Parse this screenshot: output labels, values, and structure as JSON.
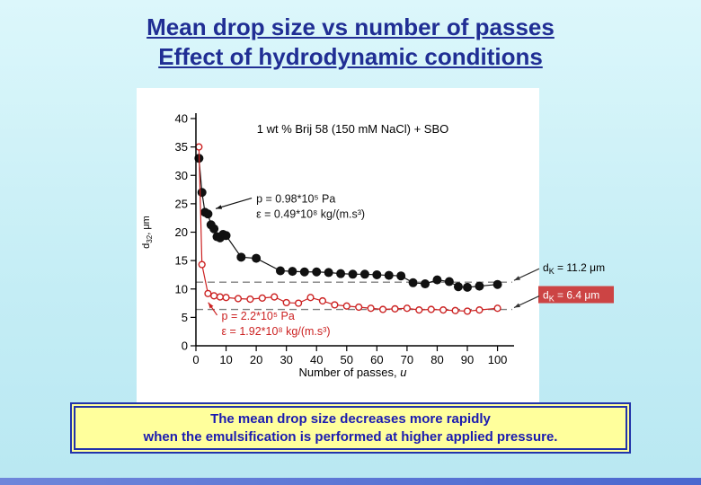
{
  "slide": {
    "title_line1": "Mean drop size vs number of passes",
    "title_line2": "Effect of hydrodynamic conditions",
    "caption_line1": "The mean drop size decreases more rapidly",
    "caption_line2": "when the emulsification is performed at higher applied pressure.",
    "colors": {
      "title_text": "#202e94",
      "caption_bg": "#ffff9c",
      "caption_border": "#2233aa",
      "caption_text": "#1b1bb0",
      "background": "#c4edf5",
      "bottom_bar": "#4a67cf"
    }
  },
  "chart_data": {
    "type": "scatter",
    "title": "1 wt % Brij 58 (150 mM NaCl) + SBO",
    "xlabel": {
      "text": "Number of passes, ",
      "var": "u"
    },
    "ylabel": {
      "base": "d",
      "sub": "32",
      "rest": ", μm"
    },
    "xlim": [
      0,
      104
    ],
    "ylim": [
      0,
      40
    ],
    "xticks": [
      0,
      10,
      20,
      30,
      40,
      50,
      60,
      70,
      80,
      90,
      100
    ],
    "yticks": [
      0,
      5,
      10,
      15,
      20,
      25,
      30,
      35,
      40
    ],
    "grid": false,
    "legend": "none",
    "series": [
      {
        "name": "low pressure run (filled black circles)",
        "color": "#111111",
        "marker": "filled",
        "points": [
          [
            1,
            33
          ],
          [
            2,
            27
          ],
          [
            3,
            23.5
          ],
          [
            4,
            23.2
          ],
          [
            5,
            21.3
          ],
          [
            6,
            20.6
          ],
          [
            7,
            19.2
          ],
          [
            8,
            19.0
          ],
          [
            9,
            19.6
          ],
          [
            10,
            19.4
          ],
          [
            15,
            15.6
          ],
          [
            20,
            15.4
          ],
          [
            28,
            13.2
          ],
          [
            32,
            13.1
          ],
          [
            36,
            13.0
          ],
          [
            40,
            13.0
          ],
          [
            44,
            12.9
          ],
          [
            48,
            12.7
          ],
          [
            52,
            12.6
          ],
          [
            56,
            12.6
          ],
          [
            60,
            12.5
          ],
          [
            64,
            12.4
          ],
          [
            68,
            12.3
          ],
          [
            72,
            11.1
          ],
          [
            76,
            10.9
          ],
          [
            80,
            11.6
          ],
          [
            84,
            11.3
          ],
          [
            87,
            10.4
          ],
          [
            90,
            10.3
          ],
          [
            94,
            10.5
          ],
          [
            100,
            10.8
          ]
        ]
      },
      {
        "name": "high pressure run (open red circles)",
        "color": "#cc2222",
        "marker": "open",
        "points": [
          [
            1,
            35
          ],
          [
            2,
            14.3
          ],
          [
            4,
            9.2
          ],
          [
            6,
            8.8
          ],
          [
            8,
            8.6
          ],
          [
            10,
            8.5
          ],
          [
            14,
            8.3
          ],
          [
            18,
            8.2
          ],
          [
            22,
            8.4
          ],
          [
            26,
            8.6
          ],
          [
            30,
            7.6
          ],
          [
            34,
            7.5
          ],
          [
            38,
            8.5
          ],
          [
            42,
            7.9
          ],
          [
            46,
            7.2
          ],
          [
            50,
            7.0
          ],
          [
            54,
            6.8
          ],
          [
            58,
            6.6
          ],
          [
            62,
            6.4
          ],
          [
            66,
            6.5
          ],
          [
            70,
            6.6
          ],
          [
            74,
            6.3
          ],
          [
            78,
            6.4
          ],
          [
            82,
            6.3
          ],
          [
            86,
            6.2
          ],
          [
            90,
            6.1
          ],
          [
            94,
            6.3
          ],
          [
            100,
            6.6
          ]
        ]
      }
    ],
    "ref_lines": [
      {
        "y": 11.2,
        "label": {
          "base": "d",
          "sub": "K",
          "rest": " = 11.2 μm"
        },
        "label_bg": null,
        "label_color": "#000000"
      },
      {
        "y": 6.4,
        "label": {
          "base": "d",
          "sub": "K",
          "rest": " = 6.4 μm"
        },
        "label_bg": "#cc4444",
        "label_color": "#ffffff"
      }
    ],
    "annotations": [
      {
        "color": "#111111",
        "x": 20,
        "y": 25.2,
        "lines": [
          "p = 0.98*10⁵ Pa",
          "ε = 0.49*10⁸ kg/(m.s³)"
        ],
        "arrow_to": [
          4.5,
          23.5
        ]
      },
      {
        "color": "#cc2222",
        "x": 8.5,
        "y": 4.6,
        "lines": [
          "p = 2.2*10⁵ Pa",
          "ε = 1.92*10⁸ kg/(m.s³)"
        ],
        "arrow_to": [
          2,
          7
        ]
      }
    ]
  }
}
